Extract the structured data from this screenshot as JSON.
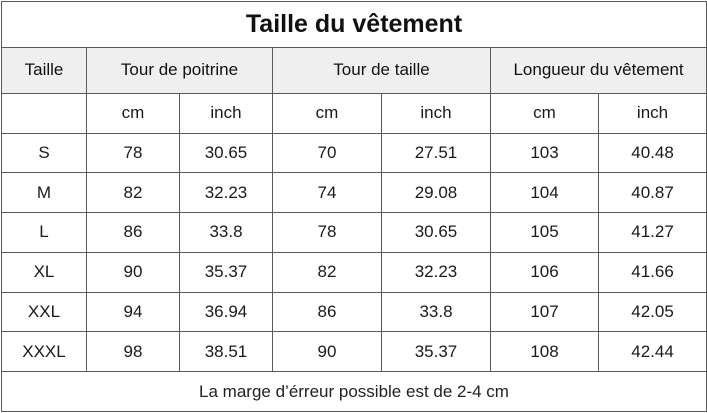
{
  "title": "Taille du vêtement",
  "headers": {
    "size": "Taille",
    "chest": "Tour de poitrine",
    "waist": "Tour de taille",
    "length": "Longueur du vêtement"
  },
  "units": {
    "cm": "cm",
    "inch": "inch"
  },
  "rows": [
    {
      "size": "S",
      "chest_cm": "78",
      "chest_in": "30.65",
      "waist_cm": "70",
      "waist_in": "27.51",
      "length_cm": "103",
      "length_in": "40.48"
    },
    {
      "size": "M",
      "chest_cm": "82",
      "chest_in": "32.23",
      "waist_cm": "74",
      "waist_in": "29.08",
      "length_cm": "104",
      "length_in": "40.87"
    },
    {
      "size": "L",
      "chest_cm": "86",
      "chest_in": "33.8",
      "waist_cm": "78",
      "waist_in": "30.65",
      "length_cm": "105",
      "length_in": "41.27"
    },
    {
      "size": "XL",
      "chest_cm": "90",
      "chest_in": "35.37",
      "waist_cm": "82",
      "waist_in": "32.23",
      "length_cm": "106",
      "length_in": "41.66"
    },
    {
      "size": "XXL",
      "chest_cm": "94",
      "chest_in": "36.94",
      "waist_cm": "86",
      "waist_in": "33.8",
      "length_cm": "107",
      "length_in": "42.05"
    },
    {
      "size": "XXXL",
      "chest_cm": "98",
      "chest_in": "38.51",
      "waist_cm": "90",
      "waist_in": "35.37",
      "length_cm": "108",
      "length_in": "42.44"
    }
  ],
  "footer": "La marge d’érreur possible est de 2-4 cm",
  "colors": {
    "header_bg": "#efefef",
    "border": "#5a5a5a",
    "text": "#1a1a1a"
  }
}
